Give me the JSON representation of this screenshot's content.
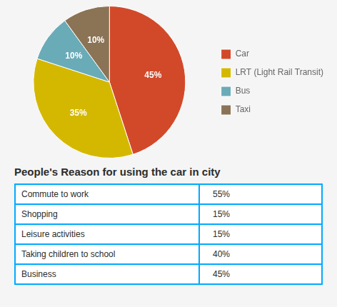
{
  "chart_data": [
    {
      "type": "pie",
      "categories": [
        "Car",
        "LRT (Light Rail Transit)",
        "Bus",
        "Taxi"
      ],
      "values": [
        45,
        35,
        10,
        10
      ],
      "value_labels": [
        "45%",
        "35%",
        "10%",
        "10%"
      ],
      "colors": [
        "#d2492a",
        "#d4b800",
        "#6aabb8",
        "#8b7355"
      ],
      "data_labels": true,
      "legend": "right"
    },
    {
      "type": "table",
      "title": "People's Reason for using the car in city",
      "categories": [
        "Commute to work",
        "Shopping",
        "Leisure activities",
        "Taking children to school",
        "Business"
      ],
      "values": [
        55,
        15,
        15,
        40,
        45
      ],
      "value_labels": [
        "55%",
        "15%",
        "15%",
        "40%",
        "45%"
      ],
      "color": "#00aaff"
    }
  ]
}
